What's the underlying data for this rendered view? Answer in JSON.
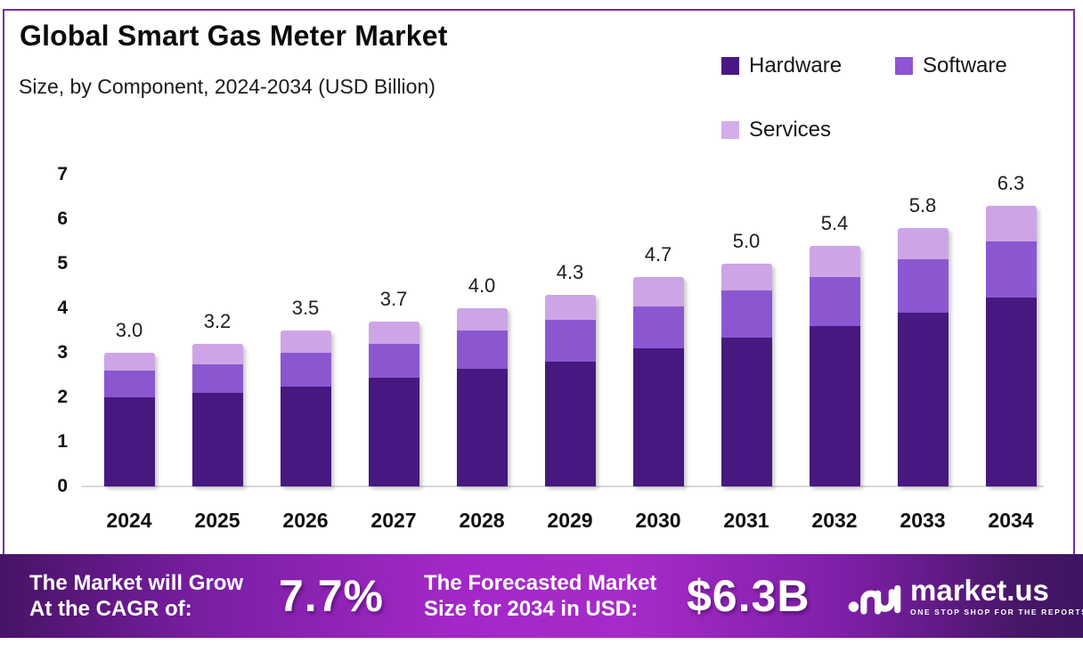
{
  "header": {
    "title": "Global Smart Gas Meter Market",
    "subtitle": "Size, by Component, 2024-2034 (USD Billion)"
  },
  "legend": {
    "items": [
      {
        "label": "Hardware",
        "color": "#4A1885"
      },
      {
        "label": "Software",
        "color": "#8F55D3"
      },
      {
        "label": "Services",
        "color": "#D4AEEA"
      }
    ]
  },
  "chart_data": {
    "type": "bar",
    "stacked": true,
    "title": "Global Smart Gas Meter Market Size, by Component, 2024-2034 (USD Billion)",
    "categories": [
      "2024",
      "2025",
      "2026",
      "2027",
      "2028",
      "2029",
      "2030",
      "2031",
      "2032",
      "2033",
      "2034"
    ],
    "series": [
      {
        "name": "Hardware",
        "color": "#47187F",
        "values": [
          2.0,
          2.1,
          2.25,
          2.45,
          2.65,
          2.8,
          3.1,
          3.35,
          3.6,
          3.9,
          4.25
        ]
      },
      {
        "name": "Software",
        "color": "#8B57D0",
        "values": [
          0.6,
          0.65,
          0.75,
          0.75,
          0.85,
          0.95,
          0.95,
          1.05,
          1.1,
          1.2,
          1.25
        ]
      },
      {
        "name": "Services",
        "color": "#CDA5E6",
        "values": [
          0.4,
          0.45,
          0.5,
          0.5,
          0.5,
          0.55,
          0.65,
          0.6,
          0.7,
          0.7,
          0.8
        ]
      }
    ],
    "totals_labels": [
      "3.0",
      "3.2",
      "3.5",
      "3.7",
      "4.0",
      "4.3",
      "4.7",
      "5.0",
      "5.4",
      "5.8",
      "6.3"
    ],
    "xlabel": "",
    "ylabel": "",
    "ylim": [
      0,
      7
    ],
    "yticks": [
      0,
      1,
      2,
      3,
      4,
      5,
      6,
      7
    ],
    "grid": false,
    "legend_position": "top-right"
  },
  "banner": {
    "cagr_label_line1": "The Market will Grow",
    "cagr_label_line2": "At the CAGR of:",
    "cagr_value": "7.7%",
    "forecast_label_line1": "The Forecasted Market",
    "forecast_label_line2": "Size for 2034 in USD:",
    "forecast_value": "$6.3B",
    "brand": {
      "name": "market.us",
      "tagline": "ONE STOP SHOP FOR THE REPORTS"
    }
  },
  "colors": {
    "frame_border": "#7A2F9D",
    "axis_line": "#D8D8D8",
    "banner_gradient": [
      "#471366",
      "#A62BC9",
      "#3D1561"
    ],
    "text": "#0b0b0b"
  }
}
